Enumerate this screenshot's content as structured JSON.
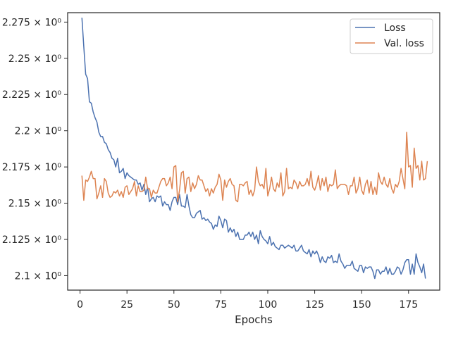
{
  "chart_data": {
    "type": "line",
    "title": "",
    "xlabel": "Epochs",
    "ylabel": "",
    "xlim": [
      -6.6,
      191.6
    ],
    "ylim": [
      2.09,
      2.2815
    ],
    "grid": false,
    "legend_position": "top-right",
    "x_ticks": [
      0,
      25,
      50,
      75,
      100,
      125,
      150,
      175
    ],
    "y_ticks": [
      2.1,
      2.125,
      2.15,
      2.175,
      2.2,
      2.225,
      2.25,
      2.275
    ],
    "x_tick_labels": [
      "0",
      "25",
      "50",
      "75",
      "100",
      "125",
      "150",
      "175"
    ],
    "y_tick_labels": [
      "2.1 × 10⁰",
      "2.125 × 10⁰",
      "2.15 × 10⁰",
      "2.175 × 10⁰",
      "2.2 × 10⁰",
      "2.225 × 10⁰",
      "2.25 × 10⁰",
      "2.275 × 10⁰"
    ],
    "series": [
      {
        "name": "Loss",
        "color": "#4c72b0",
        "x_start": 1,
        "values": [
          2.278,
          2.258,
          2.239,
          2.236,
          2.22,
          2.219,
          2.213,
          2.209,
          2.206,
          2.199,
          2.196,
          2.196,
          2.192,
          2.191,
          2.187,
          2.185,
          2.181,
          2.18,
          2.175,
          2.181,
          2.171,
          2.172,
          2.174,
          2.167,
          2.171,
          2.169,
          2.168,
          2.167,
          2.166,
          2.166,
          2.163,
          2.164,
          2.159,
          2.163,
          2.156,
          2.161,
          2.151,
          2.153,
          2.154,
          2.151,
          2.155,
          2.154,
          2.155,
          2.148,
          2.151,
          2.149,
          2.149,
          2.145,
          2.151,
          2.154,
          2.154,
          2.149,
          2.156,
          2.148,
          2.148,
          2.147,
          2.156,
          2.148,
          2.142,
          2.14,
          2.14,
          2.143,
          2.144,
          2.145,
          2.139,
          2.14,
          2.138,
          2.139,
          2.137,
          2.136,
          2.132,
          2.135,
          2.134,
          2.141,
          2.138,
          2.133,
          2.139,
          2.138,
          2.13,
          2.133,
          2.13,
          2.132,
          2.127,
          2.13,
          2.125,
          2.125,
          2.125,
          2.128,
          2.128,
          2.13,
          2.127,
          2.13,
          2.125,
          2.128,
          2.122,
          2.131,
          2.127,
          2.125,
          2.124,
          2.122,
          2.127,
          2.121,
          2.123,
          2.12,
          2.119,
          2.118,
          2.121,
          2.121,
          2.119,
          2.12,
          2.121,
          2.12,
          2.119,
          2.121,
          2.117,
          2.117,
          2.119,
          2.121,
          2.117,
          2.116,
          2.115,
          2.118,
          2.113,
          2.117,
          2.115,
          2.117,
          2.114,
          2.109,
          2.113,
          2.11,
          2.109,
          2.113,
          2.112,
          2.114,
          2.109,
          2.11,
          2.109,
          2.115,
          2.11,
          2.108,
          2.105,
          2.107,
          2.107,
          2.107,
          2.11,
          2.105,
          2.104,
          2.103,
          2.107,
          2.107,
          2.102,
          2.106,
          2.105,
          2.106,
          2.106,
          2.103,
          2.098,
          2.104,
          2.104,
          2.101,
          2.103,
          2.103,
          2.106,
          2.101,
          2.105,
          2.101,
          2.101,
          2.103,
          2.106,
          2.105,
          2.101,
          2.104,
          2.109,
          2.111,
          2.111,
          2.101,
          2.108,
          2.101,
          2.115,
          2.109,
          2.106,
          2.102,
          2.108,
          2.098
        ]
      },
      {
        "name": "Val. loss",
        "color": "#dd8452",
        "x_start": 1,
        "values": [
          2.169,
          2.152,
          2.166,
          2.165,
          2.168,
          2.172,
          2.167,
          2.167,
          2.153,
          2.157,
          2.162,
          2.154,
          2.167,
          2.165,
          2.157,
          2.154,
          2.155,
          2.158,
          2.157,
          2.159,
          2.155,
          2.158,
          2.154,
          2.161,
          2.162,
          2.156,
          2.158,
          2.16,
          2.165,
          2.155,
          2.162,
          2.158,
          2.158,
          2.159,
          2.168,
          2.16,
          2.16,
          2.154,
          2.159,
          2.157,
          2.157,
          2.161,
          2.165,
          2.167,
          2.167,
          2.162,
          2.164,
          2.168,
          2.16,
          2.175,
          2.176,
          2.151,
          2.159,
          2.171,
          2.172,
          2.157,
          2.167,
          2.168,
          2.158,
          2.164,
          2.16,
          2.163,
          2.169,
          2.166,
          2.166,
          2.162,
          2.158,
          2.16,
          2.155,
          2.16,
          2.157,
          2.161,
          2.163,
          2.17,
          2.166,
          2.152,
          2.166,
          2.161,
          2.165,
          2.167,
          2.163,
          2.162,
          2.152,
          2.151,
          2.163,
          2.163,
          2.162,
          2.164,
          2.165,
          2.156,
          2.159,
          2.155,
          2.159,
          2.175,
          2.165,
          2.162,
          2.163,
          2.16,
          2.174,
          2.155,
          2.16,
          2.168,
          2.16,
          2.158,
          2.164,
          2.161,
          2.171,
          2.155,
          2.158,
          2.174,
          2.16,
          2.161,
          2.16,
          2.166,
          2.164,
          2.16,
          2.165,
          2.162,
          2.162,
          2.163,
          2.167,
          2.162,
          2.172,
          2.161,
          2.159,
          2.163,
          2.169,
          2.159,
          2.167,
          2.162,
          2.168,
          2.158,
          2.163,
          2.162,
          2.163,
          2.173,
          2.16,
          2.162,
          2.163,
          2.163,
          2.163,
          2.162,
          2.156,
          2.162,
          2.162,
          2.168,
          2.157,
          2.16,
          2.168,
          2.159,
          2.156,
          2.163,
          2.166,
          2.157,
          2.165,
          2.156,
          2.161,
          2.156,
          2.171,
          2.165,
          2.163,
          2.168,
          2.163,
          2.161,
          2.167,
          2.16,
          2.157,
          2.163,
          2.161,
          2.165,
          2.174,
          2.167,
          2.16,
          2.199,
          2.175,
          2.176,
          2.161,
          2.188,
          2.174,
          2.176,
          2.166,
          2.179,
          2.166,
          2.167,
          2.179
        ]
      }
    ]
  }
}
